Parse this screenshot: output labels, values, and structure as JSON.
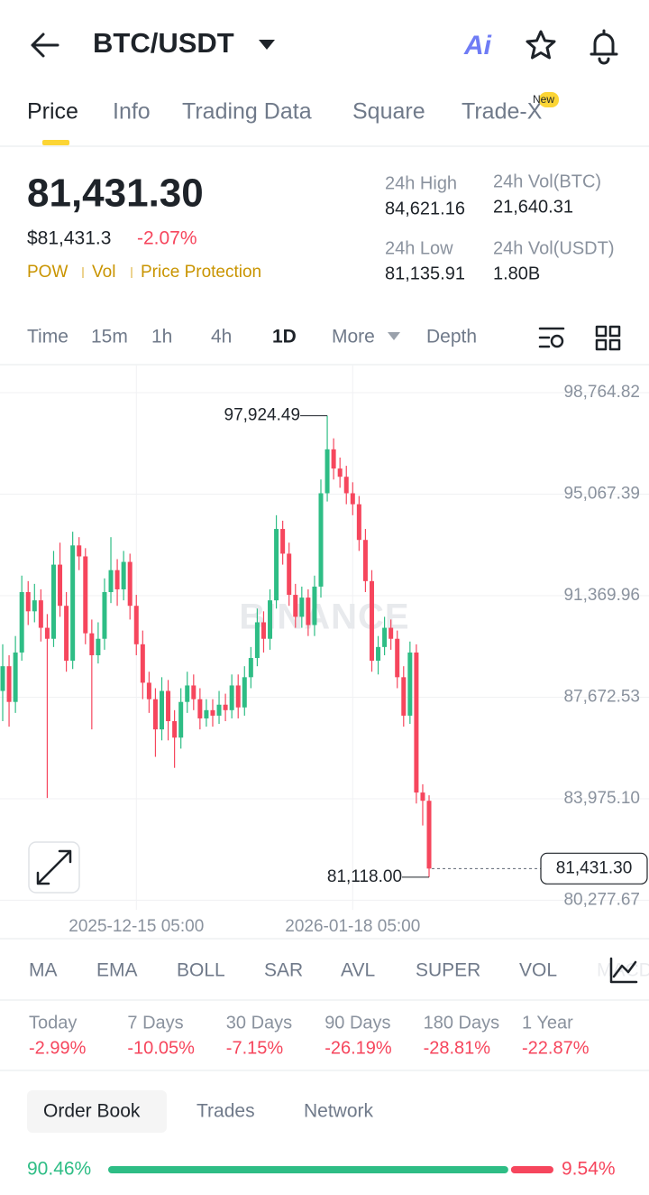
{
  "header": {
    "title": "BTC/USDT"
  },
  "tabs": [
    "Price",
    "Info",
    "Trading Data",
    "Square",
    "Trade-X"
  ],
  "tab_badge": "New",
  "ticker": {
    "last": "81,431.30",
    "usd": "$81,431.3",
    "change": "-2.07%",
    "tags": [
      "POW",
      "Vol",
      "Price Protection"
    ]
  },
  "stats": [
    {
      "label": "24h High",
      "value": "84,621.16"
    },
    {
      "label": "24h Vol(BTC)",
      "value": "21,640.31"
    },
    {
      "label": "24h Low",
      "value": "81,135.91"
    },
    {
      "label": "24h Vol(USDT)",
      "value": "1.80B"
    }
  ],
  "intervals": [
    "Time",
    "15m",
    "1h",
    "4h",
    "1D",
    "More",
    "Depth"
  ],
  "chart_data": {
    "type": "candlestick",
    "candles": [
      [
        87900,
        89600,
        86800,
        88800
      ],
      [
        88800,
        89200,
        86600,
        87500
      ],
      [
        87500,
        89900,
        87100,
        89300
      ],
      [
        89300,
        92100,
        89000,
        91500
      ],
      [
        91500,
        91900,
        90300,
        90800
      ],
      [
        90800,
        91800,
        90400,
        91200
      ],
      [
        91200,
        91600,
        89700,
        90200
      ],
      [
        90200,
        90700,
        84000,
        89800
      ],
      [
        89800,
        93000,
        89500,
        92500
      ],
      [
        92500,
        93300,
        90600,
        91000
      ],
      [
        91000,
        91500,
        88600,
        89000
      ],
      [
        89000,
        93700,
        88700,
        93200
      ],
      [
        93200,
        93500,
        92300,
        92800
      ],
      [
        92800,
        93100,
        89600,
        90000
      ],
      [
        90000,
        90500,
        86500,
        89200
      ],
      [
        89200,
        90400,
        88900,
        89800
      ],
      [
        89800,
        92000,
        89400,
        91500
      ],
      [
        91500,
        93500,
        91100,
        92300
      ],
      [
        92300,
        92700,
        91000,
        91600
      ],
      [
        91600,
        93000,
        91200,
        92600
      ],
      [
        92600,
        92900,
        90500,
        91000
      ],
      [
        91000,
        91400,
        89200,
        89600
      ],
      [
        89600,
        90100,
        87600,
        88200
      ],
      [
        88200,
        88600,
        87100,
        87600
      ],
      [
        87600,
        88000,
        85500,
        86500
      ],
      [
        86500,
        88400,
        86100,
        87900
      ],
      [
        87900,
        88300,
        86100,
        86800
      ],
      [
        86800,
        87200,
        85100,
        86200
      ],
      [
        86200,
        88000,
        85800,
        87500
      ],
      [
        87500,
        88600,
        87100,
        88100
      ],
      [
        88100,
        88500,
        87200,
        87600
      ],
      [
        87600,
        88000,
        86500,
        86900
      ],
      [
        86900,
        87600,
        86600,
        87200
      ],
      [
        87200,
        87600,
        86600,
        87000
      ],
      [
        87000,
        87900,
        86700,
        87400
      ],
      [
        87400,
        87800,
        86800,
        87200
      ],
      [
        87200,
        88500,
        86900,
        88100
      ],
      [
        88100,
        88500,
        86900,
        87300
      ],
      [
        87300,
        88800,
        87000,
        88400
      ],
      [
        88400,
        89500,
        88000,
        89100
      ],
      [
        89100,
        90900,
        88800,
        90400
      ],
      [
        90400,
        90800,
        89300,
        89800
      ],
      [
        89800,
        91600,
        89400,
        91200
      ],
      [
        91200,
        94300,
        90900,
        93800
      ],
      [
        93800,
        94100,
        92500,
        92900
      ],
      [
        92900,
        93300,
        91000,
        91400
      ],
      [
        91400,
        91800,
        90200,
        90600
      ],
      [
        90600,
        91700,
        90200,
        91300
      ],
      [
        91300,
        91600,
        89900,
        90300
      ],
      [
        90300,
        92100,
        89900,
        91700
      ],
      [
        91700,
        95600,
        91300,
        95100
      ],
      [
        95100,
        97924.49,
        94800,
        96700
      ],
      [
        96700,
        97100,
        95600,
        96000
      ],
      [
        96000,
        96400,
        95300,
        95700
      ],
      [
        95700,
        96100,
        94700,
        95100
      ],
      [
        95100,
        95500,
        94300,
        94700
      ],
      [
        94700,
        95000,
        93000,
        93400
      ],
      [
        93400,
        93800,
        91500,
        91900
      ],
      [
        91900,
        92300,
        88600,
        89000
      ],
      [
        89000,
        89900,
        88500,
        89500
      ],
      [
        89500,
        90600,
        89200,
        90200
      ],
      [
        90200,
        90500,
        89400,
        89800
      ],
      [
        89800,
        90100,
        88000,
        88400
      ],
      [
        88400,
        88800,
        86600,
        87000
      ],
      [
        87000,
        89700,
        86700,
        89300
      ],
      [
        89300,
        89600,
        83800,
        84200
      ],
      [
        84200,
        84500,
        83000,
        83900
      ],
      [
        83900,
        84100,
        81118.0,
        81431.3
      ]
    ],
    "ylim": [
      79930,
      99751
    ],
    "yticks": [
      {
        "value": 98764.82,
        "label": "98,764.82"
      },
      {
        "value": 95067.39,
        "label": "95,067.39"
      },
      {
        "value": 91369.96,
        "label": "91,369.96"
      },
      {
        "value": 87672.53,
        "label": "87,672.53"
      },
      {
        "value": 83975.1,
        "label": "83,975.10"
      },
      {
        "value": 80277.67,
        "label": "80,277.67"
      }
    ],
    "xticks": [
      {
        "value": 21,
        "label": "2025-12-15 05:00"
      },
      {
        "value": 55,
        "label": "2026-01-18 05:00"
      }
    ],
    "max_label": "97,924.49",
    "min_label": "81,118.00",
    "last_label": "81,431.30",
    "watermark": "BINANCE",
    "colors": {
      "up": "#2ebd85",
      "down": "#f6465d"
    }
  },
  "indicators": [
    "MA",
    "EMA",
    "BOLL",
    "SAR",
    "AVL",
    "SUPER",
    "VOL",
    "MACD"
  ],
  "periods": [
    {
      "label": "Today",
      "value": "-2.99%"
    },
    {
      "label": "7 Days",
      "value": "-10.05%"
    },
    {
      "label": "30 Days",
      "value": "-7.15%"
    },
    {
      "label": "90 Days",
      "value": "-26.19%"
    },
    {
      "label": "180 Days",
      "value": "-28.81%"
    },
    {
      "label": "1 Year",
      "value": "-22.87%"
    }
  ],
  "book_tabs": [
    "Order Book",
    "Trades",
    "Network"
  ],
  "ratio": {
    "buy": 90.46,
    "buy_label": "90.46%",
    "sell": 9.54,
    "sell_label": "9.54%"
  }
}
